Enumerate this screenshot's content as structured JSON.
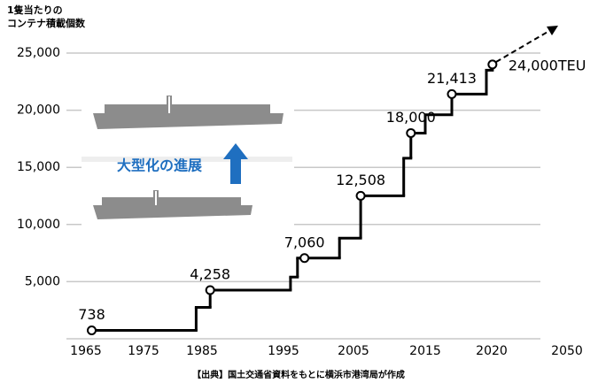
{
  "chart_data": {
    "type": "step",
    "y_axis_title": [
      "1隻当たりの",
      "コンテナ積載個数"
    ],
    "source": "【出典】国土交通省資料をもとに横浜市港湾局が作成",
    "annotation": "大型化の進展",
    "xlim": [
      1965,
      2050
    ],
    "xticks": [
      1965,
      1975,
      1985,
      1995,
      2005,
      2015,
      2020,
      2050
    ],
    "ylim": [
      0,
      25000
    ],
    "yticks": [
      {
        "value": 5000,
        "label": "5,000"
      },
      {
        "value": 10000,
        "label": "10,000"
      },
      {
        "value": 15000,
        "label": "15,000"
      },
      {
        "value": 20000,
        "label": "20,000"
      },
      {
        "value": 25000,
        "label": "25,000"
      }
    ],
    "grid": true,
    "color": "#000000",
    "step_line": {
      "x": [
        1966,
        1984,
        1986,
        1996,
        1997,
        2003,
        2006,
        2012,
        2013,
        2015,
        2017,
        2019.6,
        2020.3
      ],
      "values": [
        738,
        2750,
        4258,
        5400,
        7060,
        8800,
        12508,
        15800,
        18000,
        19600,
        21413,
        23500,
        24000
      ]
    },
    "milestones": {
      "x": [
        1966,
        1986,
        1998,
        2006,
        2013,
        2017,
        2020.3
      ],
      "values": [
        738,
        4258,
        7060,
        12508,
        18000,
        21413,
        24000
      ],
      "value_labels": [
        "738",
        "4,258",
        "7,060",
        "12,508",
        "18,000",
        "21,413",
        "24,000TEU"
      ]
    }
  }
}
